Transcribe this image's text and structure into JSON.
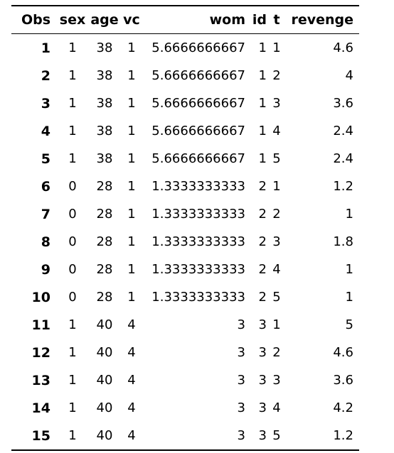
{
  "table": {
    "columns": [
      "Obs",
      "sex",
      "age",
      "vc",
      "wom",
      "id",
      "t",
      "revenge"
    ],
    "rows": [
      [
        "1",
        "1",
        "38",
        "1",
        "5.6666666667",
        "1",
        "1",
        "4.6"
      ],
      [
        "2",
        "1",
        "38",
        "1",
        "5.6666666667",
        "1",
        "2",
        "4"
      ],
      [
        "3",
        "1",
        "38",
        "1",
        "5.6666666667",
        "1",
        "3",
        "3.6"
      ],
      [
        "4",
        "1",
        "38",
        "1",
        "5.6666666667",
        "1",
        "4",
        "2.4"
      ],
      [
        "5",
        "1",
        "38",
        "1",
        "5.6666666667",
        "1",
        "5",
        "2.4"
      ],
      [
        "6",
        "0",
        "28",
        "1",
        "1.3333333333",
        "2",
        "1",
        "1.2"
      ],
      [
        "7",
        "0",
        "28",
        "1",
        "1.3333333333",
        "2",
        "2",
        "1"
      ],
      [
        "8",
        "0",
        "28",
        "1",
        "1.3333333333",
        "2",
        "3",
        "1.8"
      ],
      [
        "9",
        "0",
        "28",
        "1",
        "1.3333333333",
        "2",
        "4",
        "1"
      ],
      [
        "10",
        "0",
        "28",
        "1",
        "1.3333333333",
        "2",
        "5",
        "1"
      ],
      [
        "11",
        "1",
        "40",
        "4",
        "3",
        "3",
        "1",
        "5"
      ],
      [
        "12",
        "1",
        "40",
        "4",
        "3",
        "3",
        "2",
        "4.6"
      ],
      [
        "13",
        "1",
        "40",
        "4",
        "3",
        "3",
        "3",
        "3.6"
      ],
      [
        "14",
        "1",
        "40",
        "4",
        "3",
        "3",
        "4",
        "4.2"
      ],
      [
        "15",
        "1",
        "40",
        "4",
        "3",
        "3",
        "5",
        "1.2"
      ]
    ]
  }
}
